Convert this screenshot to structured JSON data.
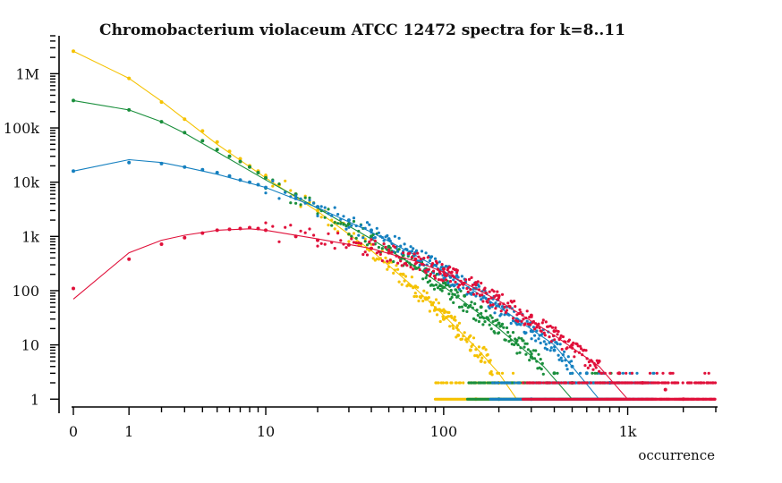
{
  "chart_data": {
    "type": "scatter",
    "title": "Chromobacterium violaceum ATCC 12472 spectra for k=8..11",
    "xlabel": "occurrence",
    "ylabel": "",
    "x_scale": "log(1+x)",
    "y_scale": "log",
    "xlim": [
      0,
      3000
    ],
    "ylim": [
      0.55,
      5000000
    ],
    "x_ticks": [
      {
        "value": 0,
        "label": "0"
      },
      {
        "value": 1,
        "label": "1"
      },
      {
        "value": 10,
        "label": "10"
      },
      {
        "value": 100,
        "label": "100"
      },
      {
        "value": 1000,
        "label": "1k"
      }
    ],
    "y_ticks": [
      {
        "value": 1,
        "label": "1"
      },
      {
        "value": 10,
        "label": "10"
      },
      {
        "value": 100,
        "label": "100"
      },
      {
        "value": 1000,
        "label": "1k"
      },
      {
        "value": 10000,
        "label": "10k"
      },
      {
        "value": 100000,
        "label": "100k"
      },
      {
        "value": 1000000,
        "label": "1M"
      }
    ],
    "grid": false,
    "legend": "none",
    "series": [
      {
        "color": "#f5c200",
        "fit_line": [
          [
            0,
            2600000
          ],
          [
            1,
            820000
          ],
          [
            2,
            310000
          ],
          [
            3,
            145000
          ],
          [
            5,
            50000
          ],
          [
            10,
            12000
          ],
          [
            20,
            2900
          ],
          [
            40,
            550
          ],
          [
            70,
            110
          ],
          [
            100,
            35
          ],
          [
            150,
            9
          ],
          [
            200,
            3
          ],
          [
            250,
            1
          ]
        ],
        "points": [
          [
            0,
            2600000
          ],
          [
            1,
            820000
          ],
          [
            2,
            300000
          ],
          [
            3,
            145000
          ],
          [
            4,
            88000
          ],
          [
            5,
            55000
          ],
          [
            6,
            37000
          ],
          [
            7,
            27000
          ],
          [
            8,
            20000
          ],
          [
            9,
            16000
          ],
          [
            10,
            13000
          ],
          [
            12,
            9000
          ],
          [
            15,
            6000
          ],
          [
            20,
            3000
          ],
          [
            25,
            1800
          ],
          [
            30,
            1100
          ],
          [
            40,
            600
          ],
          [
            50,
            330
          ],
          [
            60,
            200
          ],
          [
            70,
            120
          ],
          [
            80,
            70
          ],
          [
            90,
            45
          ],
          [
            100,
            30
          ],
          [
            120,
            15
          ],
          [
            140,
            8
          ],
          [
            160,
            5
          ],
          [
            180,
            3
          ],
          [
            200,
            2
          ],
          [
            150,
            1
          ]
        ],
        "scatter_range": [
          100,
          300
        ]
      },
      {
        "color": "#1a8f3c",
        "fit_line": [
          [
            0,
            320000
          ],
          [
            1,
            215000
          ],
          [
            2,
            130000
          ],
          [
            3,
            80000
          ],
          [
            5,
            36000
          ],
          [
            10,
            11000
          ],
          [
            20,
            3300
          ],
          [
            40,
            900
          ],
          [
            70,
            280
          ],
          [
            100,
            120
          ],
          [
            200,
            20
          ],
          [
            350,
            4
          ],
          [
            500,
            1
          ]
        ],
        "points": [
          [
            0,
            320000
          ],
          [
            1,
            215000
          ],
          [
            2,
            130000
          ],
          [
            3,
            82000
          ],
          [
            4,
            58000
          ],
          [
            5,
            40000
          ],
          [
            6,
            30000
          ],
          [
            7,
            24000
          ],
          [
            8,
            19000
          ],
          [
            9,
            15000
          ],
          [
            10,
            12000
          ],
          [
            15,
            6000
          ],
          [
            20,
            3500
          ],
          [
            30,
            1700
          ],
          [
            40,
            1000
          ],
          [
            50,
            650
          ],
          [
            60,
            450
          ],
          [
            80,
            250
          ],
          [
            100,
            140
          ],
          [
            130,
            80
          ],
          [
            160,
            50
          ],
          [
            200,
            25
          ],
          [
            250,
            12
          ],
          [
            300,
            6
          ],
          [
            400,
            3
          ],
          [
            500,
            2
          ],
          [
            200,
            1
          ]
        ],
        "scatter_range": [
          150,
          900
        ]
      },
      {
        "color": "#1580c0",
        "fit_line": [
          [
            0,
            16000
          ],
          [
            1,
            26000
          ],
          [
            2,
            23000
          ],
          [
            3,
            19000
          ],
          [
            5,
            14000
          ],
          [
            10,
            8000
          ],
          [
            20,
            3400
          ],
          [
            40,
            1200
          ],
          [
            70,
            450
          ],
          [
            100,
            230
          ],
          [
            200,
            50
          ],
          [
            400,
            10
          ],
          [
            700,
            1
          ]
        ],
        "points": [
          [
            0,
            16000
          ],
          [
            1,
            23000
          ],
          [
            2,
            22000
          ],
          [
            3,
            19000
          ],
          [
            4,
            17000
          ],
          [
            5,
            15000
          ],
          [
            6,
            13000
          ],
          [
            7,
            11000
          ],
          [
            8,
            10000
          ],
          [
            9,
            9000
          ],
          [
            10,
            8000
          ],
          [
            15,
            5000
          ],
          [
            20,
            3500
          ],
          [
            30,
            2000
          ],
          [
            40,
            1300
          ],
          [
            50,
            900
          ],
          [
            70,
            500
          ],
          [
            100,
            260
          ],
          [
            150,
            110
          ],
          [
            200,
            55
          ],
          [
            250,
            30
          ],
          [
            300,
            18
          ],
          [
            400,
            8
          ],
          [
            500,
            4
          ],
          [
            600,
            3
          ],
          [
            800,
            2
          ],
          [
            300,
            1
          ]
        ],
        "scatter_range": [
          200,
          1400
        ]
      },
      {
        "color": "#e0103a",
        "fit_line": [
          [
            0,
            70
          ],
          [
            1,
            500
          ],
          [
            2,
            850
          ],
          [
            3,
            1050
          ],
          [
            5,
            1300
          ],
          [
            8,
            1380
          ],
          [
            10,
            1300
          ],
          [
            20,
            900
          ],
          [
            40,
            600
          ],
          [
            70,
            350
          ],
          [
            100,
            220
          ],
          [
            200,
            65
          ],
          [
            400,
            15
          ],
          [
            700,
            4
          ],
          [
            1000,
            1
          ]
        ],
        "points": [
          [
            0,
            110
          ],
          [
            1,
            380
          ],
          [
            2,
            720
          ],
          [
            3,
            950
          ],
          [
            4,
            1150
          ],
          [
            5,
            1300
          ],
          [
            6,
            1350
          ],
          [
            7,
            1400
          ],
          [
            8,
            1450
          ],
          [
            9,
            1400
          ],
          [
            10,
            1300
          ],
          [
            15,
            1000
          ],
          [
            20,
            850
          ],
          [
            30,
            700
          ],
          [
            40,
            600
          ],
          [
            50,
            500
          ],
          [
            70,
            380
          ],
          [
            100,
            250
          ],
          [
            150,
            140
          ],
          [
            200,
            80
          ],
          [
            300,
            35
          ],
          [
            400,
            18
          ],
          [
            500,
            10
          ],
          [
            700,
            5
          ],
          [
            900,
            3
          ],
          [
            1200,
            2
          ],
          [
            1600,
            1.5
          ],
          [
            2000,
            1
          ]
        ],
        "scatter_range": [
          300,
          3000
        ]
      }
    ]
  }
}
